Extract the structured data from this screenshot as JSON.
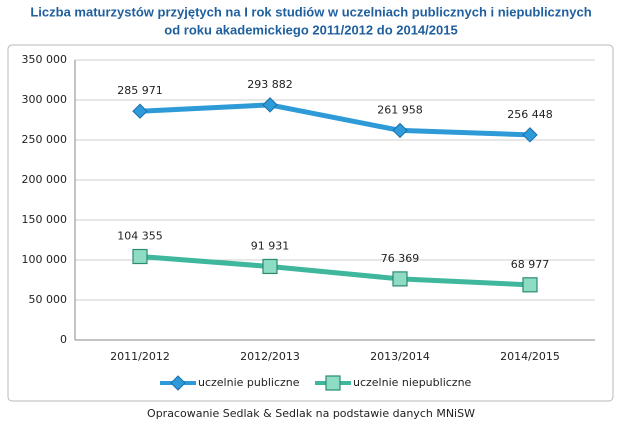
{
  "chart_data": {
    "type": "line",
    "title": [
      "Liczba maturzystów przyjętych na I rok studiów w uczelniach publicznych i niepublicznych",
      "od roku akademickiego 2011/2012 do 2014/2015"
    ],
    "categories": [
      "2011/2012",
      "2012/2013",
      "2013/2014",
      "2014/2015"
    ],
    "series": [
      {
        "name": "uczelnie publiczne",
        "color": "#2e9ad8",
        "marker": "diamond",
        "values": [
          285971,
          293882,
          261958,
          256448
        ],
        "value_labels": [
          "285 971",
          "293 882",
          "261 958",
          "256 448"
        ]
      },
      {
        "name": "uczelnie niepubliczne",
        "color": "#3fb79c",
        "marker": "square",
        "values": [
          104355,
          91931,
          76369,
          68977
        ],
        "value_labels": [
          "104 355",
          "91 931",
          "76 369",
          "68 977"
        ]
      }
    ],
    "ylim": [
      0,
      350000
    ],
    "yticks": [
      0,
      {
        "value": 50000,
        "label": "50 000"
      },
      {
        "value": 100000,
        "label": "100 000"
      },
      {
        "value": 150000,
        "label": "150 000"
      },
      {
        "value": 200000,
        "label": "200 000"
      },
      {
        "value": 250000,
        "label": "250 000"
      },
      {
        "value": 300000,
        "label": "300 000"
      },
      {
        "value": 350000,
        "label": "350 000"
      }
    ],
    "grid": true,
    "legend": "bottom",
    "source": "Opracowanie Sedlak & Sedlak na podstawie danych MNiSW"
  }
}
